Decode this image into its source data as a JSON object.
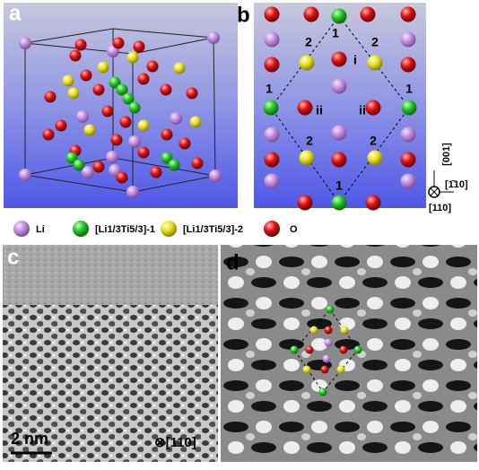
{
  "panels": {
    "a": "a",
    "b": "b",
    "c": "c",
    "d": "d"
  },
  "legend": [
    "Li",
    "[Li1/3Ti5/3]-1",
    "[Li1/3Ti5/3]-2",
    "O"
  ],
  "b_labels": [
    "1",
    "2",
    "2",
    "i",
    "1",
    "1",
    "ii",
    "ii",
    "2",
    "2",
    "1"
  ],
  "b_axes": {
    "up": "[001]",
    "right": "[1̄10]",
    "out": "[110]"
  },
  "c_labels": {
    "scale": "2 nm",
    "zone": "⊗[110]"
  }
}
